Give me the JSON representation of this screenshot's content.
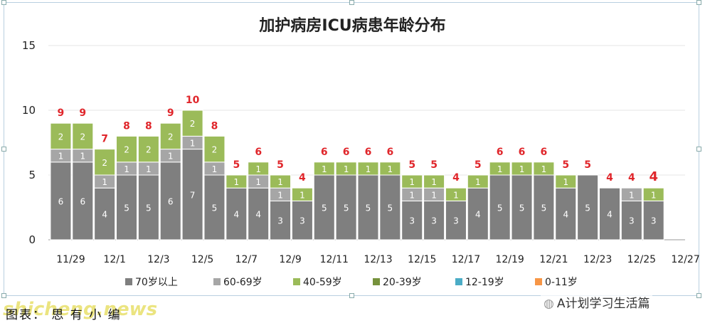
{
  "chart_data": {
    "type": "bar",
    "stacked": true,
    "title": "加护病房ICU病患年龄分布",
    "ylim": [
      0,
      15
    ],
    "yticks": [
      0,
      5,
      10,
      15
    ],
    "categories": [
      "11/29",
      "11/30",
      "12/1",
      "12/2",
      "12/3",
      "12/4",
      "12/5",
      "12/6",
      "12/7",
      "12/8",
      "12/9",
      "12/10",
      "12/11",
      "12/12",
      "12/13",
      "12/14",
      "12/15",
      "12/16",
      "12/17",
      "12/18",
      "12/19",
      "12/20",
      "12/21",
      "12/22",
      "12/23",
      "12/24",
      "12/25",
      "12/26"
    ],
    "xtick_labels": [
      "11/29",
      "12/1",
      "12/3",
      "12/5",
      "12/7",
      "12/9",
      "12/11",
      "12/13",
      "12/15",
      "12/17",
      "12/19",
      "12/21",
      "12/23",
      "12/25",
      "12/27"
    ],
    "series": [
      {
        "name": "70岁以上",
        "color": "#7f7f7f",
        "values": [
          6,
          6,
          4,
          5,
          5,
          6,
          7,
          5,
          4,
          4,
          3,
          3,
          5,
          5,
          5,
          5,
          3,
          3,
          3,
          4,
          5,
          5,
          5,
          4,
          5,
          4,
          3,
          3
        ]
      },
      {
        "name": "60-69岁",
        "color": "#a6a6a6",
        "values": [
          1,
          1,
          1,
          1,
          1,
          1,
          1,
          1,
          0,
          1,
          1,
          0,
          0,
          0,
          0,
          0,
          1,
          1,
          0,
          0,
          0,
          0,
          0,
          0,
          0,
          0,
          1,
          0
        ]
      },
      {
        "name": "40-59岁",
        "color": "#9bbb59",
        "values": [
          2,
          2,
          2,
          2,
          2,
          2,
          2,
          2,
          1,
          1,
          1,
          1,
          1,
          1,
          1,
          1,
          1,
          1,
          1,
          1,
          1,
          1,
          1,
          1,
          0,
          0,
          0,
          1
        ]
      },
      {
        "name": "20-39岁",
        "color": "#76923c",
        "values": [
          0,
          0,
          0,
          0,
          0,
          0,
          0,
          0,
          0,
          0,
          0,
          0,
          0,
          0,
          0,
          0,
          0,
          0,
          0,
          0,
          0,
          0,
          0,
          0,
          0,
          0,
          0,
          0
        ]
      },
      {
        "name": "12-19岁",
        "color": "#4bacc6",
        "values": [
          0,
          0,
          0,
          0,
          0,
          0,
          0,
          0,
          0,
          0,
          0,
          0,
          0,
          0,
          0,
          0,
          0,
          0,
          0,
          0,
          0,
          0,
          0,
          0,
          0,
          0,
          0,
          0
        ]
      },
      {
        "name": "0-11岁",
        "color": "#f79646",
        "values": [
          0,
          0,
          0,
          0,
          0,
          0,
          0,
          0,
          0,
          0,
          0,
          0,
          0,
          0,
          0,
          0,
          0,
          0,
          0,
          0,
          0,
          0,
          0,
          0,
          0,
          0,
          0,
          0
        ]
      }
    ],
    "totals": [
      9,
      9,
      7,
      8,
      8,
      9,
      10,
      8,
      5,
      6,
      5,
      4,
      6,
      6,
      6,
      6,
      5,
      5,
      4,
      5,
      6,
      6,
      6,
      5,
      5,
      4,
      4,
      4
    ],
    "total_color": "#e0262b",
    "legend": "bottom",
    "grid": true
  },
  "footer": {
    "caption": "图表：   思 有 小 编",
    "watermark": "shicheng.news",
    "account": "A计划学习生活篇"
  }
}
